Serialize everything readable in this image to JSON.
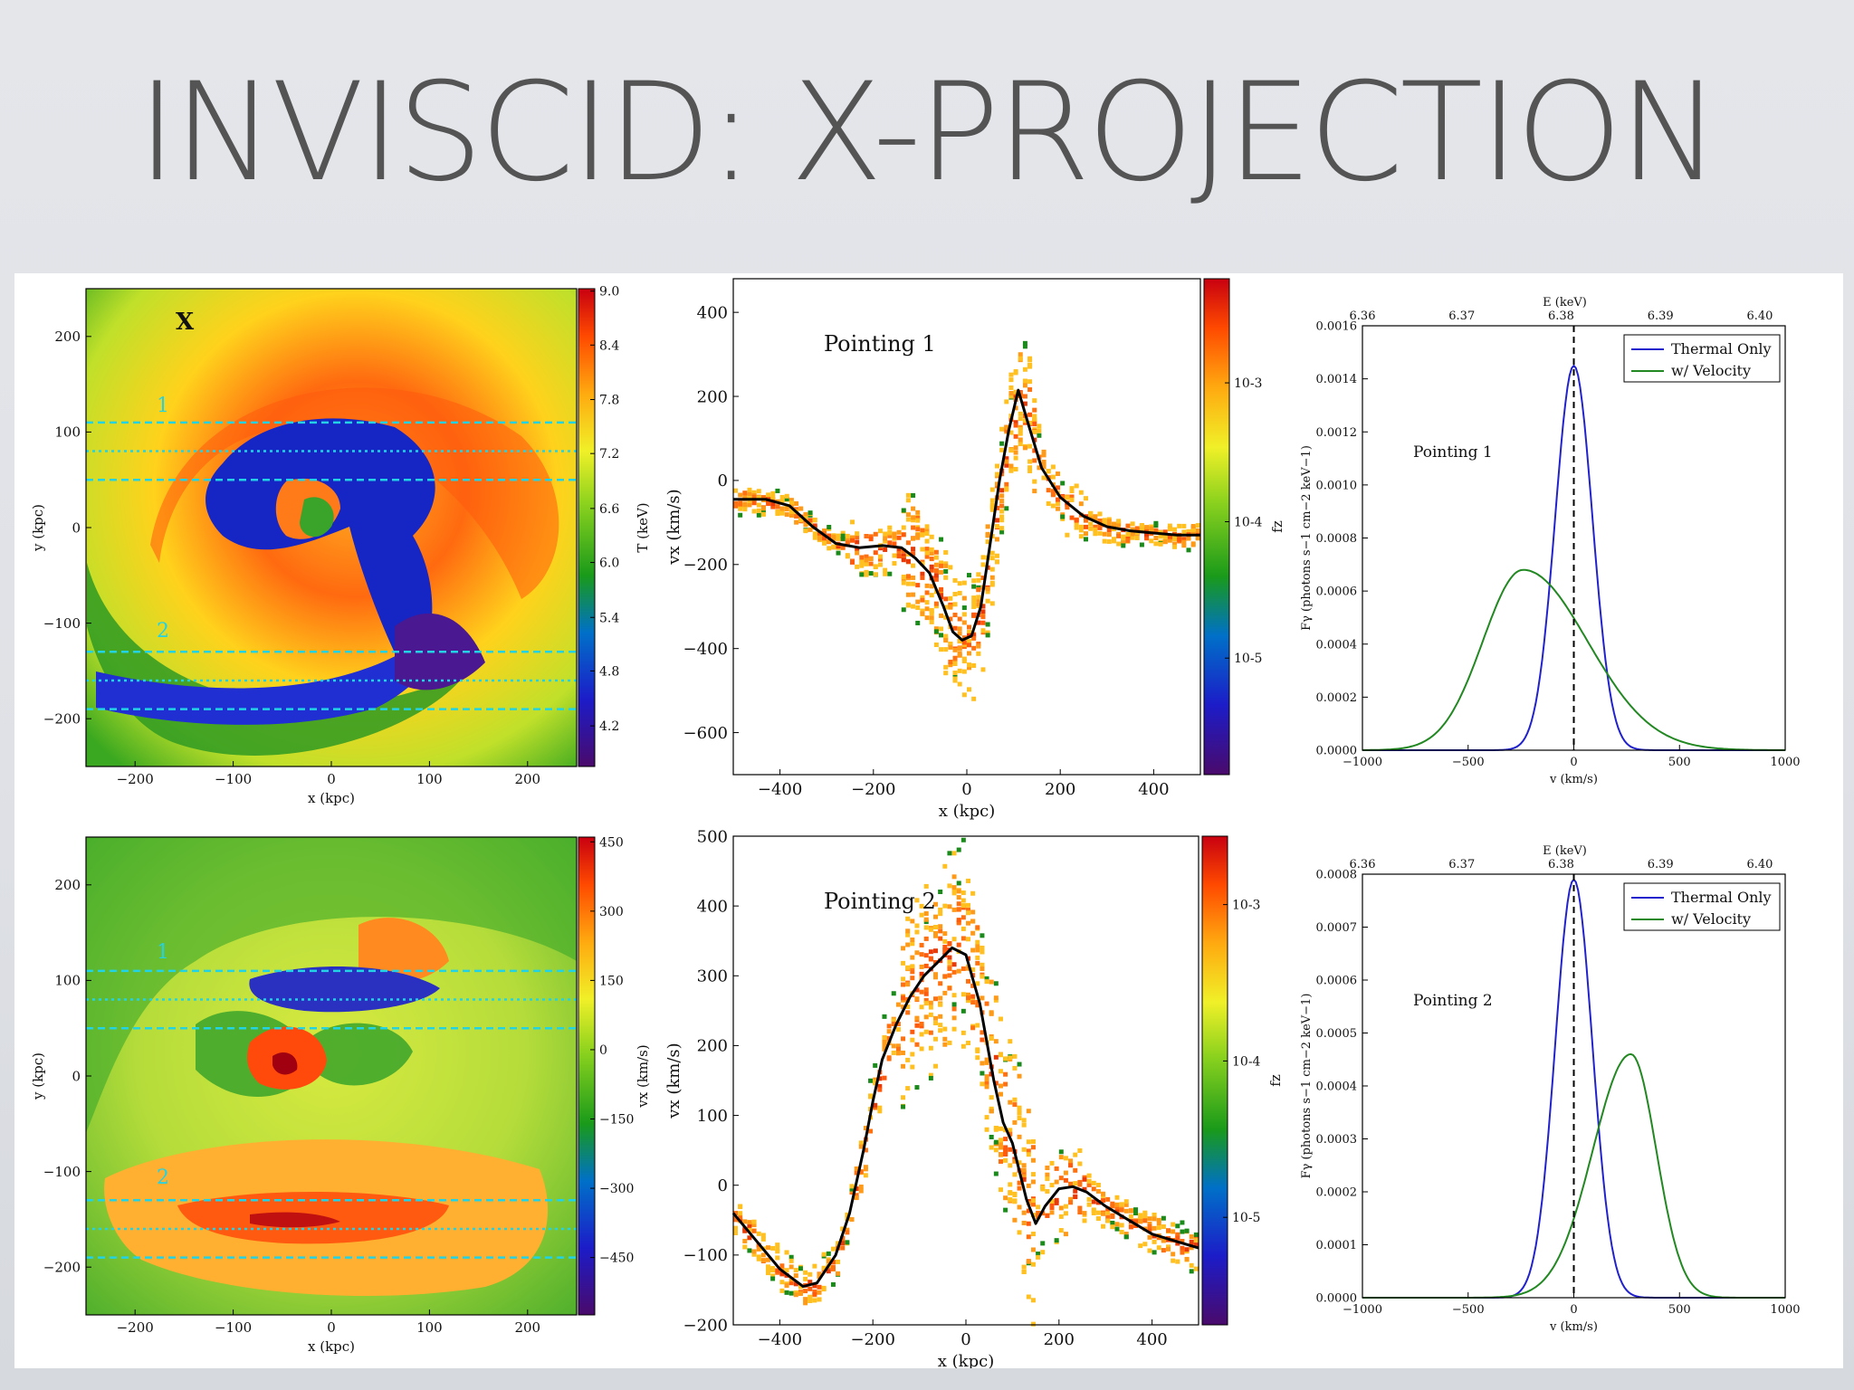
{
  "slide_title": "INVISCID: X-PROJECTION",
  "colors": {
    "thermal": "#2222cc",
    "velocity": "#228822",
    "guide_lines": "#22d3e6"
  },
  "chart_data": [
    {
      "id": "temperature-map",
      "type": "heatmap",
      "xlabel": "x  (kpc)",
      "ylabel": "y  (kpc)",
      "xlim": [
        -250,
        250
      ],
      "ylim": [
        -250,
        250
      ],
      "xticks": [
        "−200",
        "−100",
        "0",
        "100",
        "200"
      ],
      "yticks": [
        "200",
        "100",
        "0",
        "−100",
        "−200"
      ],
      "colorbar_label": "T (keV)",
      "colorbar_ticks": [
        "9.0",
        "8.4",
        "7.8",
        "7.2",
        "6.6",
        "6.0",
        "5.4",
        "4.8",
        "4.2"
      ],
      "corner_label": "X",
      "guide_labels": [
        "1",
        "2"
      ],
      "guide_lines_y": [
        110,
        80,
        50,
        -130,
        -160,
        -190
      ]
    },
    {
      "id": "pointing1-scatter",
      "type": "scatter",
      "label": "Pointing 1",
      "xlabel": "x (kpc)",
      "ylabel": "vx (km/s)",
      "xlim": [
        -500,
        500
      ],
      "ylim": [
        -700,
        480
      ],
      "xticks": [
        "−400",
        "−200",
        "0",
        "200",
        "400"
      ],
      "yticks": [
        "400",
        "200",
        "0",
        "−200",
        "−400",
        "−600"
      ],
      "colorbar_label": "fz",
      "colorbar_ticks": [
        "10-3",
        "10-4",
        "10-5"
      ],
      "x": [
        -500,
        -430,
        -380,
        -330,
        -280,
        -230,
        -180,
        -140,
        -110,
        -80,
        -50,
        -30,
        -10,
        10,
        30,
        50,
        70,
        90,
        110,
        130,
        160,
        200,
        250,
        300,
        350,
        400,
        450,
        500
      ],
      "y": [
        -45,
        -45,
        -60,
        -110,
        -150,
        -160,
        -155,
        -160,
        -185,
        -220,
        -300,
        -360,
        -380,
        -370,
        -300,
        -150,
        0,
        120,
        215,
        140,
        30,
        -40,
        -85,
        -110,
        -120,
        -125,
        -130,
        -130
      ]
    },
    {
      "id": "pointing1-spectrum",
      "type": "line",
      "label": "Pointing 1",
      "xlabel": "v (km/s)",
      "ylabel": "Fγ (photons s−1 cm−2 keV−1)",
      "top_axis_label": "E (keV)",
      "top_ticks": [
        "6.36",
        "6.37",
        "6.38",
        "6.39",
        "6.40"
      ],
      "xlim": [
        -1000,
        1000
      ],
      "ylim": [
        0,
        0.0016
      ],
      "xticks": [
        "−1000",
        "−500",
        "0",
        "500",
        "1000"
      ],
      "yticks": [
        "0.0016",
        "0.0014",
        "0.0012",
        "0.0010",
        "0.0008",
        "0.0006",
        "0.0004",
        "0.0002",
        "0.0000"
      ],
      "legend_position": "top-right",
      "series": [
        {
          "name": "Thermal Only",
          "peak": 0.00145,
          "center": 0,
          "width": 88
        },
        {
          "name": "w/ Velocity",
          "peak": 0.00068,
          "center": -240,
          "width": 190
        }
      ]
    },
    {
      "id": "velocity-map",
      "type": "heatmap",
      "xlabel": "x  (kpc)",
      "ylabel": "y  (kpc)",
      "xlim": [
        -250,
        250
      ],
      "ylim": [
        -250,
        250
      ],
      "xticks": [
        "−200",
        "−100",
        "0",
        "100",
        "200"
      ],
      "yticks": [
        "200",
        "100",
        "0",
        "−100",
        "−200"
      ],
      "colorbar_label": "vx (km/s)",
      "colorbar_ticks": [
        "450",
        "300",
        "150",
        "0",
        "−150",
        "−300",
        "−450"
      ],
      "guide_labels": [
        "1",
        "2"
      ],
      "guide_lines_y": [
        110,
        80,
        50,
        -130,
        -160,
        -190
      ]
    },
    {
      "id": "pointing2-scatter",
      "type": "scatter",
      "label": "Pointing 2",
      "xlabel": "x (kpc)",
      "ylabel": "vx (km/s)",
      "xlim": [
        -500,
        500
      ],
      "ylim": [
        -200,
        500
      ],
      "xticks": [
        "−400",
        "−200",
        "0",
        "200",
        "400"
      ],
      "yticks": [
        "500",
        "400",
        "300",
        "200",
        "100",
        "0",
        "−100",
        "−200"
      ],
      "colorbar_label": "fz",
      "colorbar_ticks": [
        "10-3",
        "10-4",
        "10-5"
      ],
      "x": [
        -500,
        -450,
        -400,
        -350,
        -320,
        -280,
        -250,
        -220,
        -200,
        -180,
        -150,
        -120,
        -90,
        -60,
        -30,
        0,
        30,
        60,
        80,
        100,
        130,
        150,
        170,
        200,
        230,
        260,
        300,
        350,
        400,
        450,
        500
      ],
      "y": [
        -40,
        -80,
        -120,
        -145,
        -140,
        -100,
        -40,
        50,
        120,
        180,
        230,
        270,
        300,
        320,
        340,
        330,
        260,
        150,
        90,
        60,
        -20,
        -55,
        -30,
        -5,
        -2,
        -10,
        -30,
        -50,
        -70,
        -80,
        -90
      ]
    },
    {
      "id": "pointing2-spectrum",
      "type": "line",
      "label": "Pointing 2",
      "xlabel": "v (km/s)",
      "ylabel": "Fγ (photons s−1 cm−2 keV−1)",
      "top_axis_label": "E (keV)",
      "top_ticks": [
        "6.36",
        "6.37",
        "6.38",
        "6.39",
        "6.40"
      ],
      "xlim": [
        -1000,
        1000
      ],
      "ylim": [
        0,
        0.0008
      ],
      "xticks": [
        "−1000",
        "−500",
        "0",
        "500",
        "1000"
      ],
      "yticks": [
        "0.0008",
        "0.0007",
        "0.0006",
        "0.0005",
        "0.0004",
        "0.0003",
        "0.0002",
        "0.0001",
        "0.0000"
      ],
      "legend_position": "top-right",
      "series": [
        {
          "name": "Thermal Only",
          "peak": 0.00079,
          "center": 0,
          "width": 88
        },
        {
          "name": "w/ Velocity",
          "peak": 0.00046,
          "center": 270,
          "width": 120
        }
      ]
    }
  ]
}
